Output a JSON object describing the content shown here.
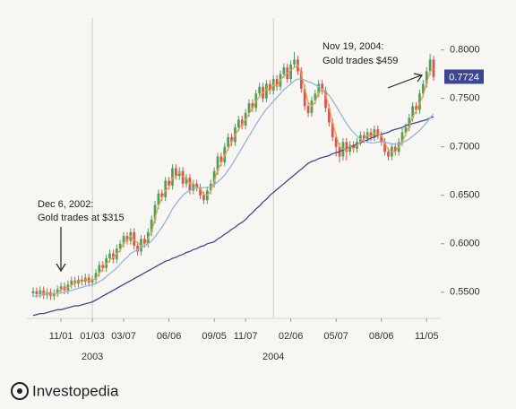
{
  "chart_data": {
    "type": "candlestick",
    "categories": [
      null,
      null,
      null,
      null,
      null,
      null,
      null,
      null,
      "11/01",
      null,
      null,
      null,
      null,
      null,
      null,
      null,
      null,
      "01/03",
      null,
      null,
      null,
      null,
      null,
      null,
      null,
      null,
      "03/07",
      null,
      null,
      null,
      null,
      null,
      null,
      null,
      null,
      null,
      null,
      null,
      null,
      "06/06",
      null,
      null,
      null,
      null,
      null,
      null,
      null,
      null,
      null,
      null,
      null,
      null,
      "09/05",
      null,
      null,
      null,
      null,
      null,
      null,
      null,
      null,
      "11/07",
      null,
      null,
      null,
      null,
      null,
      null,
      null,
      null,
      null,
      null,
      null,
      null,
      "02/06",
      null,
      null,
      null,
      null,
      null,
      null,
      null,
      null,
      null,
      null,
      null,
      null,
      "05/07",
      null,
      null,
      null,
      null,
      null,
      null,
      null,
      null,
      null,
      null,
      null,
      null,
      "08/06",
      null,
      null,
      null,
      null,
      null,
      null,
      null,
      null,
      null,
      null,
      null,
      null,
      "11/05",
      null,
      null
    ],
    "years": [
      null,
      null,
      null,
      null,
      null,
      null,
      null,
      null,
      null,
      null,
      null,
      null,
      null,
      null,
      null,
      null,
      null,
      "2003",
      null,
      null,
      null,
      null,
      null,
      null,
      null,
      null,
      null,
      null,
      null,
      null,
      null,
      null,
      null,
      null,
      null,
      null,
      null,
      null,
      null,
      null,
      null,
      null,
      null,
      null,
      null,
      null,
      null,
      null,
      null,
      null,
      null,
      null,
      null,
      null,
      null,
      null,
      null,
      null,
      null,
      null,
      null,
      null,
      null,
      null,
      null,
      null,
      null,
      null,
      null,
      "2004",
      null,
      null,
      null,
      null,
      null,
      null,
      null,
      null,
      null,
      null,
      null,
      null,
      null,
      null,
      null,
      null,
      null,
      null,
      null,
      null,
      null,
      null,
      null,
      null,
      null,
      null,
      null,
      null,
      null,
      null,
      null,
      null,
      null,
      null,
      null,
      null,
      null,
      null,
      null,
      null,
      null,
      null,
      null,
      null,
      null,
      null
    ],
    "open": [
      0.549,
      0.551,
      0.548,
      0.552,
      0.547,
      0.55,
      0.546,
      0.549,
      0.553,
      0.556,
      0.552,
      0.558,
      0.562,
      0.559,
      0.563,
      0.561,
      0.565,
      0.56,
      0.563,
      0.57,
      0.578,
      0.575,
      0.585,
      0.59,
      0.584,
      0.595,
      0.6,
      0.608,
      0.603,
      0.612,
      0.598,
      0.592,
      0.605,
      0.6,
      0.612,
      0.625,
      0.64,
      0.652,
      0.648,
      0.665,
      0.66,
      0.678,
      0.67,
      0.675,
      0.662,
      0.668,
      0.655,
      0.662,
      0.658,
      0.65,
      0.645,
      0.655,
      0.662,
      0.675,
      0.69,
      0.684,
      0.7,
      0.71,
      0.705,
      0.72,
      0.728,
      0.722,
      0.735,
      0.745,
      0.74,
      0.755,
      0.762,
      0.75,
      0.765,
      0.758,
      0.77,
      0.762,
      0.775,
      0.782,
      0.77,
      0.785,
      0.79,
      0.778,
      0.76,
      0.742,
      0.735,
      0.748,
      0.755,
      0.765,
      0.758,
      0.74,
      0.725,
      0.71,
      0.7,
      0.69,
      0.705,
      0.695,
      0.702,
      0.698,
      0.705,
      0.712,
      0.708,
      0.715,
      0.71,
      0.718,
      0.712,
      0.705,
      0.695,
      0.69,
      0.7,
      0.695,
      0.705,
      0.715,
      0.72,
      0.73,
      0.742,
      0.738,
      0.755,
      0.765,
      0.778,
      0.79
    ],
    "high": [
      0.555,
      0.555,
      0.556,
      0.556,
      0.554,
      0.554,
      0.553,
      0.557,
      0.56,
      0.56,
      0.562,
      0.566,
      0.566,
      0.567,
      0.567,
      0.569,
      0.569,
      0.567,
      0.574,
      0.582,
      0.582,
      0.589,
      0.594,
      0.594,
      0.599,
      0.604,
      0.612,
      0.612,
      0.616,
      0.616,
      0.602,
      0.609,
      0.609,
      0.616,
      0.629,
      0.644,
      0.656,
      0.656,
      0.669,
      0.669,
      0.682,
      0.682,
      0.679,
      0.679,
      0.672,
      0.672,
      0.666,
      0.666,
      0.662,
      0.654,
      0.659,
      0.666,
      0.679,
      0.694,
      0.694,
      0.704,
      0.714,
      0.714,
      0.724,
      0.732,
      0.732,
      0.739,
      0.749,
      0.749,
      0.759,
      0.766,
      0.766,
      0.769,
      0.769,
      0.774,
      0.774,
      0.779,
      0.786,
      0.786,
      0.789,
      0.798,
      0.794,
      0.782,
      0.764,
      0.746,
      0.752,
      0.759,
      0.769,
      0.769,
      0.762,
      0.744,
      0.729,
      0.714,
      0.704,
      0.709,
      0.709,
      0.706,
      0.706,
      0.709,
      0.716,
      0.716,
      0.719,
      0.719,
      0.722,
      0.722,
      0.716,
      0.709,
      0.699,
      0.704,
      0.704,
      0.709,
      0.719,
      0.724,
      0.734,
      0.746,
      0.746,
      0.759,
      0.769,
      0.782,
      0.796,
      0.794
    ],
    "low": [
      0.545,
      0.544,
      0.544,
      0.543,
      0.543,
      0.542,
      0.542,
      0.545,
      0.549,
      0.548,
      0.548,
      0.554,
      0.555,
      0.555,
      0.557,
      0.557,
      0.556,
      0.556,
      0.559,
      0.566,
      0.571,
      0.571,
      0.581,
      0.58,
      0.58,
      0.591,
      0.596,
      0.599,
      0.599,
      0.594,
      0.588,
      0.588,
      0.596,
      0.596,
      0.608,
      0.621,
      0.636,
      0.644,
      0.644,
      0.656,
      0.656,
      0.666,
      0.666,
      0.658,
      0.658,
      0.651,
      0.651,
      0.654,
      0.646,
      0.641,
      0.641,
      0.651,
      0.658,
      0.671,
      0.68,
      0.68,
      0.696,
      0.701,
      0.701,
      0.716,
      0.718,
      0.718,
      0.731,
      0.736,
      0.736,
      0.751,
      0.746,
      0.746,
      0.754,
      0.754,
      0.758,
      0.758,
      0.771,
      0.766,
      0.766,
      0.781,
      0.774,
      0.756,
      0.738,
      0.731,
      0.731,
      0.744,
      0.751,
      0.754,
      0.736,
      0.721,
      0.706,
      0.69,
      0.684,
      0.686,
      0.686,
      0.691,
      0.694,
      0.694,
      0.701,
      0.704,
      0.704,
      0.706,
      0.706,
      0.708,
      0.701,
      0.691,
      0.686,
      0.686,
      0.691,
      0.691,
      0.701,
      0.711,
      0.716,
      0.726,
      0.734,
      0.734,
      0.751,
      0.761,
      0.774,
      0.768
    ],
    "close": [
      0.551,
      0.548,
      0.552,
      0.547,
      0.55,
      0.546,
      0.549,
      0.553,
      0.556,
      0.552,
      0.558,
      0.562,
      0.559,
      0.563,
      0.561,
      0.565,
      0.56,
      0.563,
      0.57,
      0.578,
      0.575,
      0.585,
      0.59,
      0.584,
      0.595,
      0.6,
      0.608,
      0.603,
      0.612,
      0.598,
      0.592,
      0.605,
      0.6,
      0.612,
      0.625,
      0.64,
      0.652,
      0.648,
      0.665,
      0.66,
      0.678,
      0.67,
      0.675,
      0.662,
      0.668,
      0.655,
      0.662,
      0.658,
      0.65,
      0.645,
      0.655,
      0.662,
      0.675,
      0.69,
      0.684,
      0.7,
      0.71,
      0.705,
      0.72,
      0.728,
      0.722,
      0.735,
      0.745,
      0.74,
      0.755,
      0.762,
      0.75,
      0.765,
      0.758,
      0.77,
      0.762,
      0.775,
      0.782,
      0.77,
      0.785,
      0.79,
      0.778,
      0.76,
      0.742,
      0.735,
      0.748,
      0.755,
      0.765,
      0.758,
      0.74,
      0.725,
      0.71,
      0.7,
      0.69,
      0.705,
      0.695,
      0.702,
      0.698,
      0.705,
      0.712,
      0.708,
      0.715,
      0.71,
      0.718,
      0.712,
      0.705,
      0.695,
      0.69,
      0.7,
      0.695,
      0.705,
      0.715,
      0.72,
      0.73,
      0.742,
      0.738,
      0.755,
      0.765,
      0.778,
      0.79,
      0.772
    ],
    "up_color": "#4c9f5c",
    "down_color": "#d9534f",
    "lines": [
      {
        "color": "#3f4b8c",
        "values": [
          0.526,
          0.527,
          0.528,
          0.528,
          0.529,
          0.53,
          0.531,
          0.532,
          0.532,
          0.533,
          0.534,
          0.535,
          0.536,
          0.536,
          0.537,
          0.538,
          0.539,
          0.54,
          0.542,
          0.544,
          0.546,
          0.548,
          0.55,
          0.552,
          0.554,
          0.556,
          0.558,
          0.56,
          0.562,
          0.564,
          0.566,
          0.568,
          0.57,
          0.572,
          0.574,
          0.576,
          0.578,
          0.58,
          0.582,
          0.583,
          0.585,
          0.586,
          0.588,
          0.589,
          0.591,
          0.592,
          0.594,
          0.595,
          0.597,
          0.598,
          0.6,
          0.601,
          0.602,
          0.605,
          0.607,
          0.61,
          0.612,
          0.615,
          0.617,
          0.62,
          0.622,
          0.625,
          0.629,
          0.632,
          0.636,
          0.639,
          0.643,
          0.646,
          0.65,
          0.653,
          0.656,
          0.659,
          0.662,
          0.665,
          0.668,
          0.671,
          0.674,
          0.677,
          0.68,
          0.683,
          0.685,
          0.686,
          0.688,
          0.689,
          0.69,
          0.691,
          0.693,
          0.694,
          0.695,
          0.697,
          0.698,
          0.7,
          0.701,
          0.703,
          0.704,
          0.706,
          0.707,
          0.709,
          0.71,
          0.712,
          0.713,
          0.714,
          0.715,
          0.717,
          0.718,
          0.719,
          0.72,
          0.722,
          0.723,
          0.724,
          0.725,
          0.726,
          0.727,
          0.728,
          0.73,
          0.731
        ]
      },
      {
        "color": "#93b5d8",
        "values": [
          0.546,
          0.546,
          0.547,
          0.547,
          0.548,
          0.548,
          0.548,
          0.549,
          0.549,
          0.55,
          0.551,
          0.552,
          0.553,
          0.554,
          0.555,
          0.556,
          0.557,
          0.558,
          0.559,
          0.561,
          0.563,
          0.566,
          0.569,
          0.572,
          0.575,
          0.579,
          0.583,
          0.586,
          0.59,
          0.592,
          0.594,
          0.596,
          0.598,
          0.6,
          0.603,
          0.607,
          0.612,
          0.617,
          0.623,
          0.629,
          0.636,
          0.641,
          0.646,
          0.65,
          0.653,
          0.655,
          0.657,
          0.658,
          0.658,
          0.658,
          0.658,
          0.659,
          0.661,
          0.664,
          0.667,
          0.671,
          0.676,
          0.681,
          0.687,
          0.693,
          0.699,
          0.705,
          0.711,
          0.717,
          0.723,
          0.729,
          0.734,
          0.739,
          0.743,
          0.747,
          0.751,
          0.755,
          0.759,
          0.762,
          0.765,
          0.768,
          0.77,
          0.77,
          0.769,
          0.767,
          0.766,
          0.764,
          0.762,
          0.76,
          0.757,
          0.753,
          0.748,
          0.742,
          0.736,
          0.73,
          0.724,
          0.719,
          0.715,
          0.711,
          0.708,
          0.706,
          0.705,
          0.704,
          0.704,
          0.705,
          0.705,
          0.705,
          0.704,
          0.703,
          0.703,
          0.703,
          0.704,
          0.706,
          0.708,
          0.711,
          0.714,
          0.717,
          0.721,
          0.725,
          0.73,
          0.734
        ]
      },
      {
        "color": "#e9a24c",
        "values": [
          null,
          null,
          0.55,
          0.549,
          0.55,
          0.548,
          0.548,
          0.549,
          0.553,
          0.554,
          0.555,
          0.557,
          0.56,
          0.561,
          0.561,
          0.563,
          0.562,
          0.563,
          0.564,
          0.57,
          0.574,
          0.579,
          0.583,
          0.586,
          0.59,
          0.593,
          0.601,
          0.604,
          0.608,
          0.604,
          0.601,
          0.598,
          0.599,
          0.606,
          0.612,
          0.626,
          0.639,
          0.647,
          0.655,
          0.658,
          0.668,
          0.669,
          0.674,
          0.669,
          0.668,
          0.662,
          0.662,
          0.658,
          0.657,
          0.651,
          0.65,
          0.654,
          0.664,
          0.676,
          0.683,
          0.691,
          0.698,
          0.705,
          0.712,
          0.718,
          0.723,
          0.728,
          0.734,
          0.74,
          0.747,
          0.752,
          0.756,
          0.759,
          0.758,
          0.764,
          0.763,
          0.769,
          0.773,
          0.776,
          0.779,
          0.782,
          0.784,
          0.776,
          0.76,
          0.746,
          0.742,
          0.746,
          0.756,
          0.759,
          0.754,
          0.741,
          0.725,
          0.712,
          0.7,
          0.698,
          0.697,
          0.701,
          0.698,
          0.702,
          0.705,
          0.708,
          0.712,
          0.711,
          0.714,
          0.713,
          0.712,
          0.704,
          0.697,
          0.695,
          0.695,
          0.7,
          0.705,
          0.713,
          0.722,
          0.731,
          0.737,
          0.745,
          0.753,
          0.766,
          0.778,
          0.78
        ]
      }
    ],
    "ylim": [
      0.523,
      0.833
    ],
    "yticks": [
      {
        "value": 0.55,
        "label": "0.5500"
      },
      {
        "value": 0.6,
        "label": "0.6000"
      },
      {
        "value": 0.65,
        "label": "0.6500"
      },
      {
        "value": 0.7,
        "label": "0.7000"
      },
      {
        "value": 0.75,
        "label": "0.7500"
      },
      {
        "value": 0.8,
        "label": "0.8000"
      }
    ],
    "last_price": 0.7724,
    "annotations": [
      {
        "lines": [
          "Dec 6, 2002:",
          "Gold trades at $315"
        ]
      },
      {
        "lines": [
          "Nov 19, 2004:",
          "Gold trades $459"
        ]
      }
    ]
  },
  "brand": "Investopedia"
}
